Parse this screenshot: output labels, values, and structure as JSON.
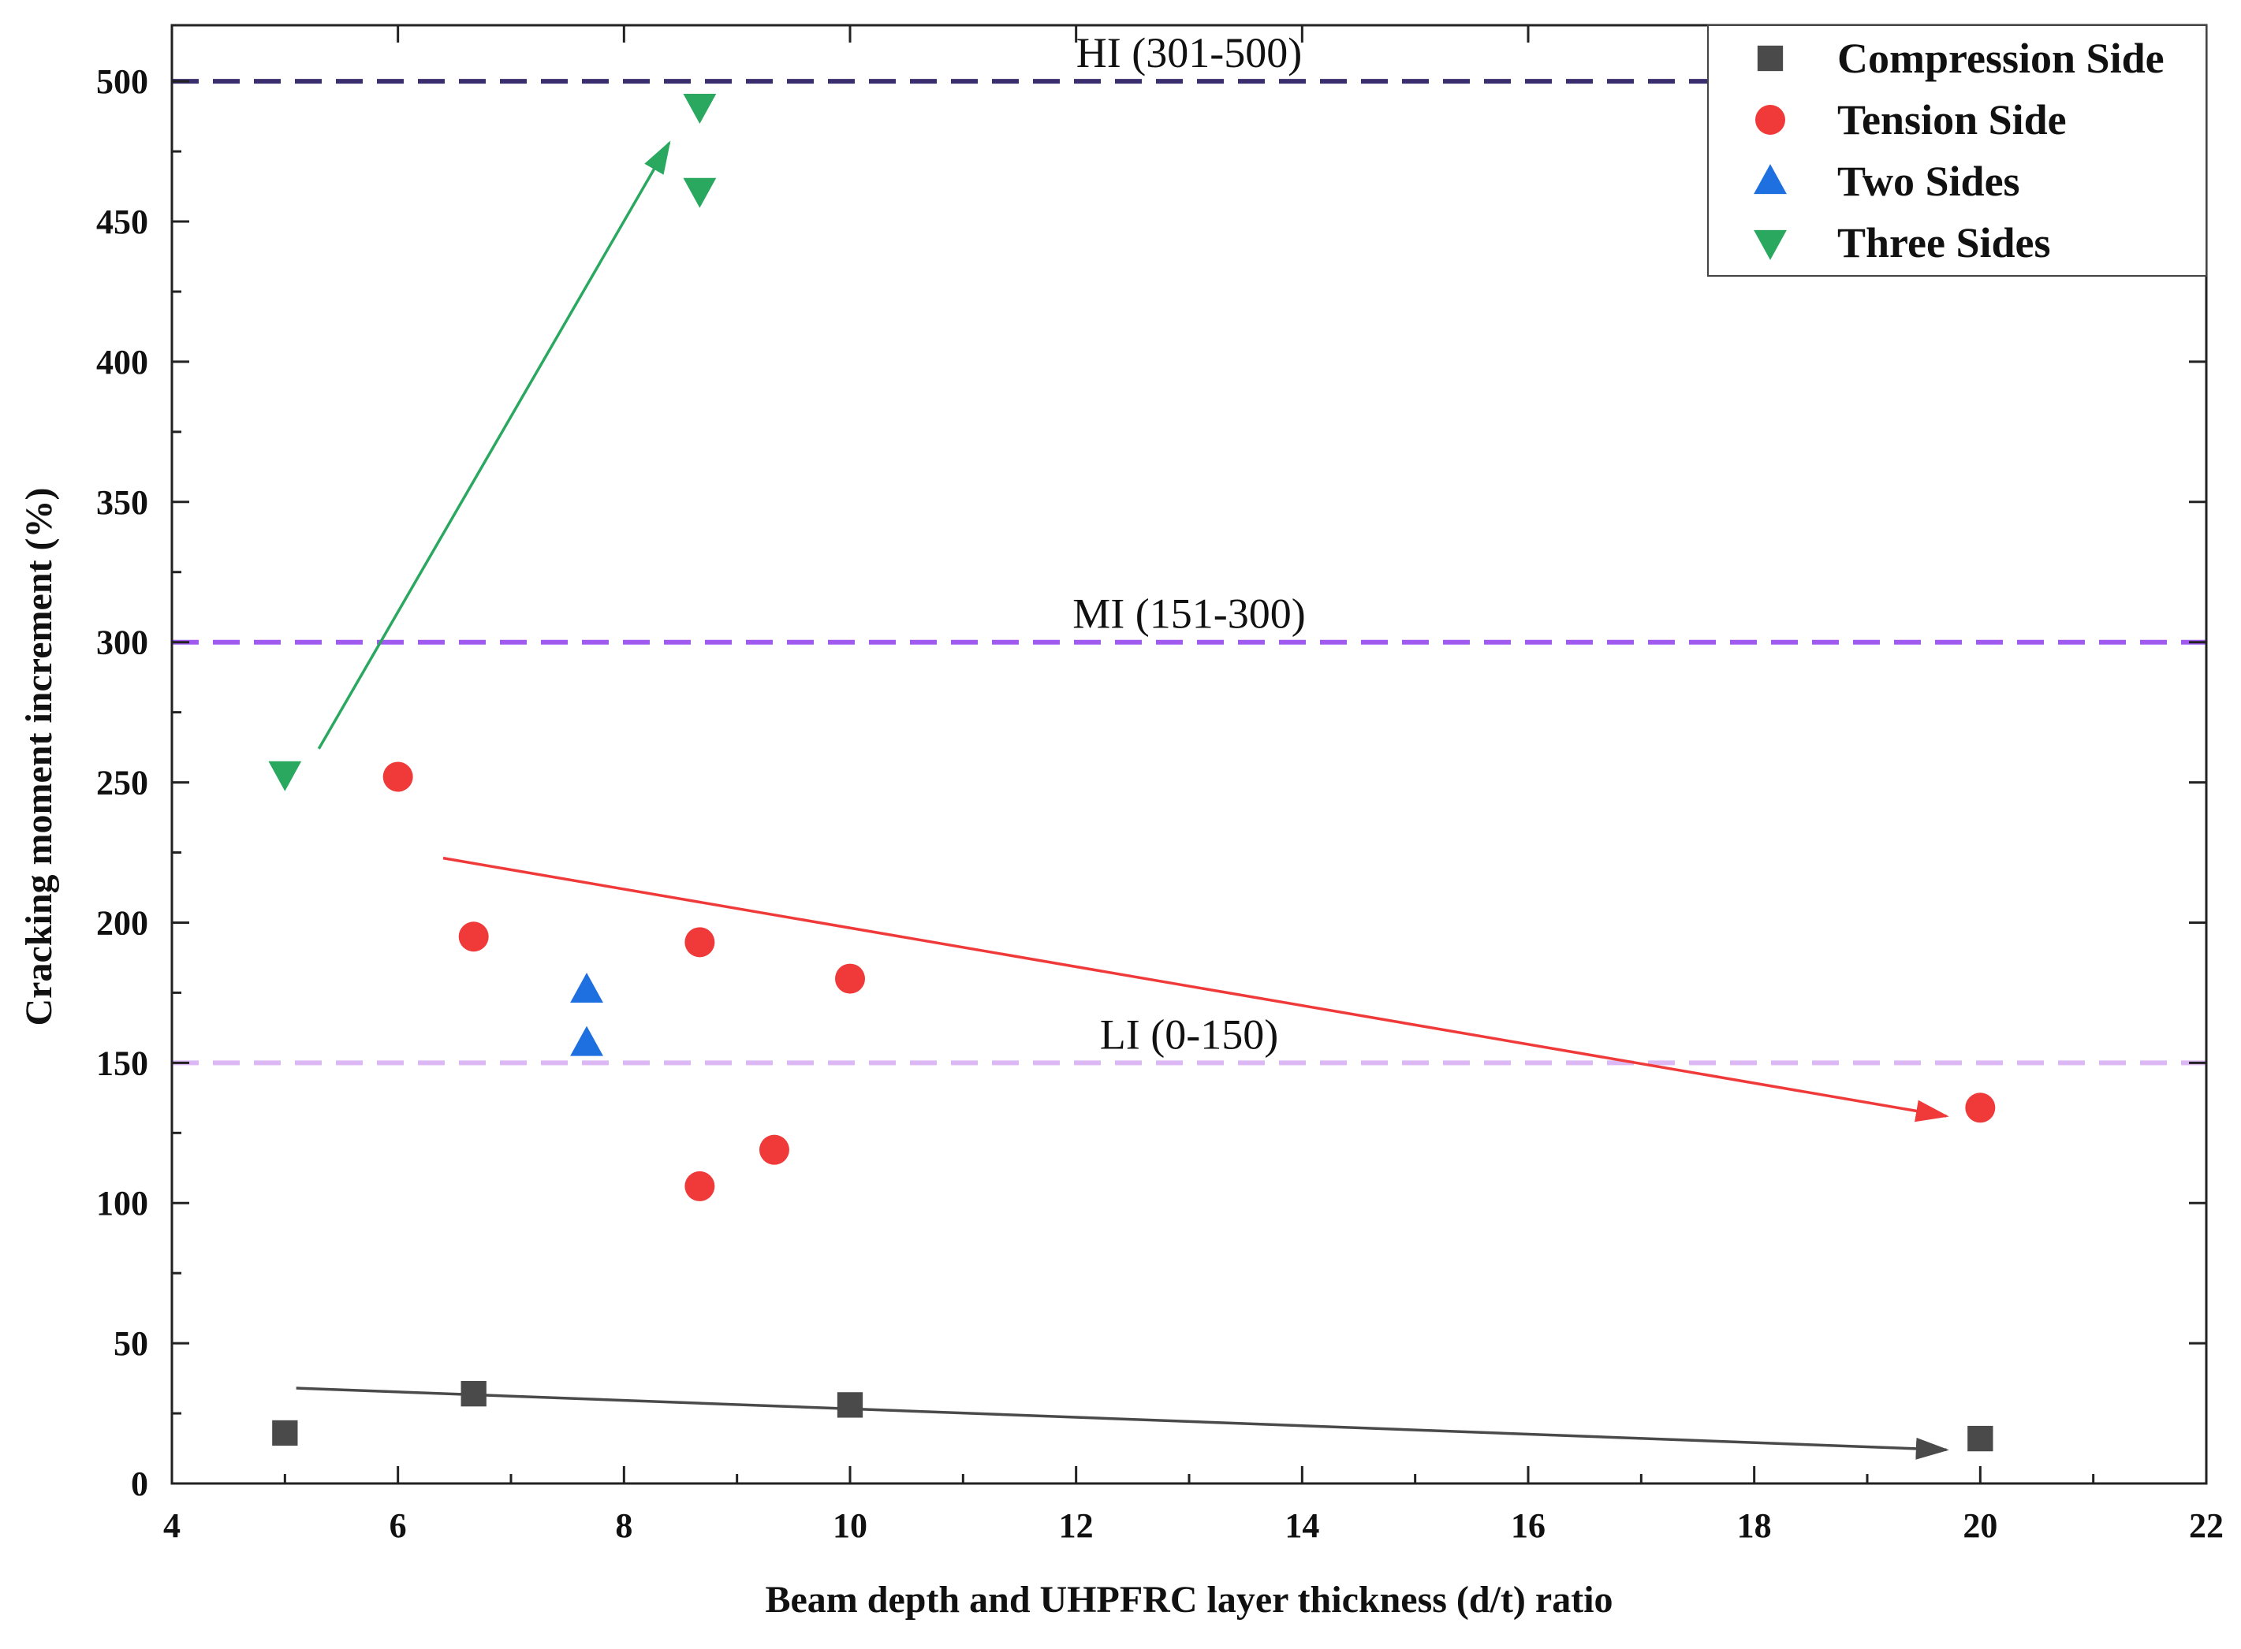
{
  "chart_data": {
    "type": "scatter",
    "title": "",
    "xlabel": "Beam depth and UHPFRC layer thickness (d/t) ratio",
    "ylabel": "Cracking moment increment (%)",
    "xlim": [
      4,
      22
    ],
    "ylim": [
      0,
      520
    ],
    "x_ticks": [
      4,
      6,
      8,
      10,
      12,
      14,
      16,
      18,
      20,
      22
    ],
    "y_ticks": [
      0,
      50,
      100,
      150,
      200,
      250,
      300,
      350,
      400,
      450,
      500
    ],
    "legend_position": "top-right",
    "series": [
      {
        "name": "Compression Side",
        "marker": "square",
        "color": "#4a4a4a",
        "points": [
          [
            5,
            18
          ],
          [
            6.67,
            32
          ],
          [
            10,
            28
          ],
          [
            20,
            16
          ]
        ]
      },
      {
        "name": "Tension Side",
        "marker": "circle",
        "color": "#f03a3a",
        "points": [
          [
            6,
            252
          ],
          [
            6.67,
            195
          ],
          [
            8.67,
            193
          ],
          [
            10,
            180
          ],
          [
            8.67,
            106
          ],
          [
            9.33,
            119
          ],
          [
            20,
            134
          ]
        ]
      },
      {
        "name": "Two Sides",
        "marker": "triangle-up",
        "color": "#1e6fe0",
        "points": [
          [
            7.67,
            176
          ],
          [
            7.67,
            157
          ]
        ]
      },
      {
        "name": "Three Sides",
        "marker": "triangle-down",
        "color": "#2aa860",
        "points": [
          [
            5,
            253
          ],
          [
            8.67,
            491
          ],
          [
            8.67,
            461
          ]
        ]
      }
    ],
    "reference_lines": [
      {
        "label": "HI (301-500)",
        "y": 500,
        "color": "#3b2e6e"
      },
      {
        "label": "MI (151-300)",
        "y": 300,
        "color": "#a05af0"
      },
      {
        "label": "LI (0-150)",
        "y": 150,
        "color": "#dcb8f5"
      }
    ],
    "trend_arrows": [
      {
        "name": "Three Sides trend",
        "color": "#2aa860",
        "from": [
          5.3,
          262
        ],
        "to": [
          8.4,
          478
        ]
      },
      {
        "name": "Tension Side trend",
        "color": "#f03a3a",
        "from": [
          6.4,
          223
        ],
        "to": [
          19.7,
          131
        ]
      },
      {
        "name": "Compression Side trend",
        "color": "#4a4a4a",
        "from": [
          5.1,
          34
        ],
        "to": [
          19.7,
          12
        ]
      }
    ]
  }
}
